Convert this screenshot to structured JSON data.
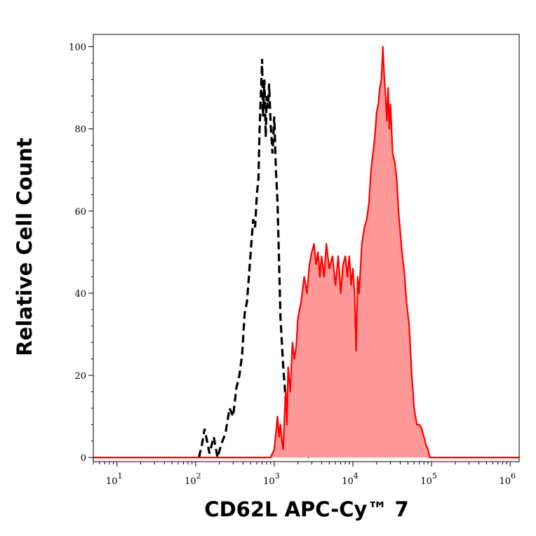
{
  "chart_data": {
    "type": "area",
    "title": "",
    "xlabel": "CD62L APC-Cy™ 7",
    "ylabel": "Relative Cell Count",
    "x_scale": "log",
    "xlim": [
      5,
      1300000
    ],
    "ylim": [
      -1,
      103
    ],
    "grid": false,
    "x_ticks": [
      10,
      100,
      1000,
      10000,
      100000,
      1000000
    ],
    "x_tick_bases": [
      "10",
      "10",
      "10",
      "10",
      "10",
      "10"
    ],
    "x_tick_exponents": [
      "1",
      "2",
      "3",
      "4",
      "5",
      "6"
    ],
    "y_ticks": [
      0,
      20,
      40,
      60,
      80,
      100
    ],
    "y_tick_labels": [
      "0",
      "20",
      "40",
      "60",
      "80",
      "100"
    ],
    "colors": {
      "control": "#000000",
      "stained_line": "#ff0000",
      "stained_fill": "#ff9999"
    },
    "series": [
      {
        "style": "dashed",
        "x": [
          110,
          120,
          130,
          150,
          170,
          190,
          210,
          240,
          270,
          300,
          330,
          360,
          390,
          420,
          450,
          480,
          510,
          540,
          570,
          600,
          630,
          650,
          680,
          700,
          720,
          750,
          780,
          800,
          830,
          860,
          900,
          950,
          1000,
          1050,
          1100,
          1150,
          1200,
          1300,
          1400,
          1500,
          1600,
          1800,
          2000,
          2200,
          2500,
          2800
        ],
        "y": [
          0,
          3,
          7,
          1,
          5,
          0,
          3,
          6,
          12,
          10,
          17,
          20,
          25,
          35,
          38,
          45,
          52,
          58,
          56,
          64,
          68,
          80,
          90,
          97,
          83,
          92,
          78,
          88,
          85,
          91,
          81,
          74,
          83,
          70,
          62,
          48,
          34,
          22,
          14,
          8,
          4,
          6,
          2,
          0,
          1,
          0
        ]
      },
      {
        "style": "filled",
        "x": [
          5,
          800,
          900,
          1000,
          1050,
          1100,
          1150,
          1200,
          1250,
          1300,
          1350,
          1400,
          1450,
          1500,
          1600,
          1700,
          1800,
          1900,
          2000,
          2200,
          2400,
          2600,
          2800,
          3000,
          3200,
          3400,
          3600,
          3800,
          4000,
          4300,
          4600,
          5000,
          5500,
          6000,
          6500,
          7000,
          7500,
          8000,
          8500,
          9000,
          9500,
          10000,
          10500,
          11000,
          11500,
          12000,
          13000,
          14000,
          15000,
          16000,
          17000,
          18000,
          19000,
          20000,
          21000,
          22000,
          23000,
          24000,
          25000,
          26000,
          27000,
          28000,
          29000,
          30000,
          32000,
          34000,
          36000,
          38000,
          40000,
          42000,
          45000,
          48000,
          52000,
          56000,
          60000,
          65000,
          70000,
          75000,
          80000,
          85000,
          90000,
          95000,
          100000,
          105000,
          110000,
          130000,
          1300000
        ],
        "y": [
          0,
          0,
          0,
          2,
          6,
          10,
          5,
          8,
          4,
          2,
          10,
          16,
          8,
          22,
          16,
          28,
          24,
          27,
          34,
          38,
          44,
          40,
          47,
          50,
          52,
          47,
          50,
          44,
          49,
          44,
          52,
          46,
          49,
          42,
          49,
          40,
          47,
          49,
          44,
          49,
          42,
          46,
          40,
          26,
          44,
          40,
          52,
          56,
          58,
          62,
          70,
          74,
          78,
          84,
          86,
          90,
          92,
          100,
          93,
          88,
          82,
          90,
          80,
          86,
          74,
          72,
          68,
          60,
          55,
          50,
          45,
          38,
          32,
          20,
          12,
          8,
          8,
          7,
          5,
          3,
          2,
          0,
          0,
          0,
          0,
          0,
          0
        ]
      }
    ]
  }
}
